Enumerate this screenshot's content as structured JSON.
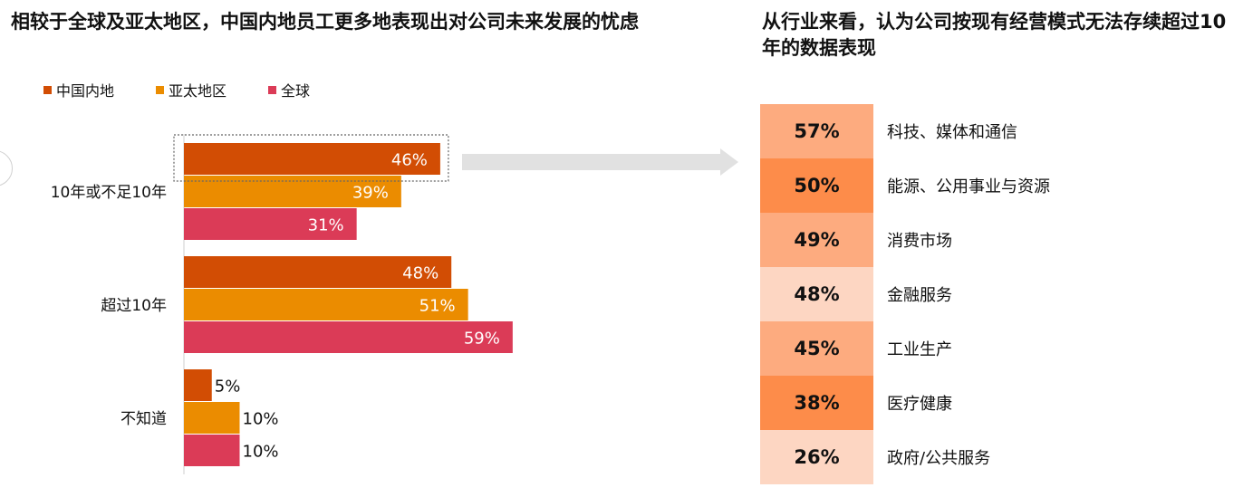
{
  "left": {
    "title": "相较于全球及亚太地区，中国内地员工更多地表现出对公司未来发展的忧虑"
  },
  "right": {
    "title": "从行业来看，认为公司按现有经营模式无法存续超过10年的数据表现"
  },
  "colors": {
    "china": "#d24d04",
    "apac": "#eb8c00",
    "global": "#db3b57",
    "arrow": "#e1e1e1",
    "cell_shades": [
      "#fdab7f",
      "#fd8c4a",
      "#fdab7f",
      "#fdd6c2",
      "#fdab7f",
      "#fd8c4a",
      "#fdd6c2"
    ]
  },
  "chart_data": [
    {
      "type": "bar",
      "orientation": "horizontal",
      "categories": [
        "10年或不足10年",
        "超过10年",
        "不知道"
      ],
      "series": [
        {
          "name": "中国内地",
          "values": [
            46,
            48,
            5
          ],
          "labels": [
            "46%",
            "48%",
            "5%"
          ]
        },
        {
          "name": "亚太地区",
          "values": [
            39,
            51,
            10
          ],
          "labels": [
            "39%",
            "51%",
            "10%"
          ]
        },
        {
          "name": "全球",
          "values": [
            31,
            59,
            10
          ],
          "labels": [
            "31%",
            "59%",
            "10%"
          ]
        }
      ],
      "unit": "%",
      "xlim": [
        0,
        100
      ],
      "legend_position": "top-left",
      "grid": false,
      "highlighted": {
        "category": "10年或不足10年",
        "series": "中国内地"
      }
    },
    {
      "type": "table",
      "rows": [
        {
          "value": 57,
          "label": "57%",
          "industry": "科技、媒体和通信"
        },
        {
          "value": 50,
          "label": "50%",
          "industry": "能源、公用事业与资源"
        },
        {
          "value": 49,
          "label": "49%",
          "industry": "消费市场"
        },
        {
          "value": 48,
          "label": "48%",
          "industry": "金融服务"
        },
        {
          "value": 45,
          "label": "45%",
          "industry": "工业生产"
        },
        {
          "value": 38,
          "label": "38%",
          "industry": "医疗健康"
        },
        {
          "value": 26,
          "label": "26%",
          "industry": "政府/公共服务"
        }
      ]
    }
  ]
}
